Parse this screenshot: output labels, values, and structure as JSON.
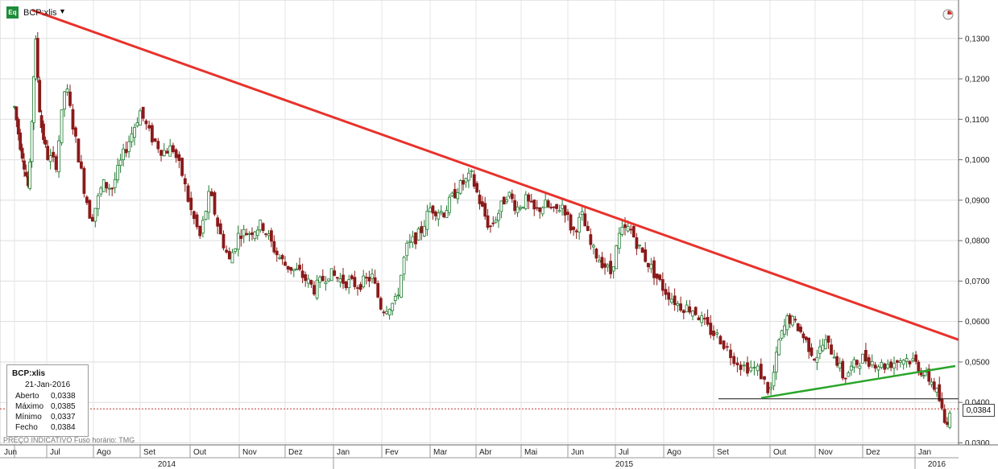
{
  "header": {
    "instrument": "BCP:xlis",
    "badge": "Eq",
    "dropdown_glyph": "▼"
  },
  "icons": {
    "logo": "equity-badge-icon",
    "clock": "clock-icon"
  },
  "info_panel": {
    "title": "BCP:xlis",
    "date": "21-Jan-2016",
    "rows": [
      {
        "label": "Aberto",
        "value": "0,0338"
      },
      {
        "label": "Máximo",
        "value": "0,0385"
      },
      {
        "label": "Mínimo",
        "value": "0,0337"
      },
      {
        "label": "Fecho",
        "value": "0,0384"
      }
    ]
  },
  "footnote": "PREÇO INDICATIVO   Fuso horário: TMG",
  "last_price_tag": "0,0384",
  "colors": {
    "up": "#1e7a2e",
    "down": "#8b1a1a",
    "trend_down": "#e8312a",
    "trend_up": "#2aa52a",
    "support": "#111111",
    "last_price_line": "#c0392b"
  },
  "chart_data": {
    "type": "candlestick",
    "y_axis": {
      "ticks": [
        0.13,
        0.12,
        0.11,
        0.1,
        0.09,
        0.08,
        0.07,
        0.06,
        0.05,
        0.04,
        0.03
      ],
      "tick_labels": [
        "0,1300",
        "0,1200",
        "0,1100",
        "0,1000",
        "0,0900",
        "0,0800",
        "0,0700",
        "0,0600",
        "0,0500",
        "0,0400",
        "0,0300"
      ],
      "ylim": [
        0.0295,
        0.1395
      ],
      "position": "right"
    },
    "x_axis": {
      "months": [
        "Jun",
        "Jul",
        "Ago",
        "Set",
        "Out",
        "Nov",
        "Dez",
        "Jan",
        "Fev",
        "Mar",
        "Abr",
        "Mai",
        "Jun",
        "Jul",
        "Ago",
        "Set",
        "Out",
        "Nov",
        "Dez",
        "Jan"
      ],
      "years": [
        "2014",
        "2015",
        "2016"
      ]
    },
    "price_path": [
      [
        0,
        0.113
      ],
      [
        0.15,
        0.105
      ],
      [
        0.3,
        0.099
      ],
      [
        0.45,
        0.092
      ],
      [
        0.55,
        0.112
      ],
      [
        0.65,
        0.13
      ],
      [
        0.8,
        0.11
      ],
      [
        1.0,
        0.101
      ],
      [
        1.2,
        0.099
      ],
      [
        1.4,
        0.119
      ],
      [
        1.6,
        0.106
      ],
      [
        1.8,
        0.093
      ],
      [
        1.95,
        0.085
      ],
      [
        2.2,
        0.094
      ],
      [
        2.4,
        0.093
      ],
      [
        2.6,
        0.1
      ],
      [
        2.8,
        0.106
      ],
      [
        3.0,
        0.112
      ],
      [
        3.2,
        0.106
      ],
      [
        3.45,
        0.102
      ],
      [
        3.65,
        0.103
      ],
      [
        3.85,
        0.096
      ],
      [
        4.0,
        0.088
      ],
      [
        4.2,
        0.081
      ],
      [
        4.4,
        0.092
      ],
      [
        4.6,
        0.082
      ],
      [
        4.8,
        0.075
      ],
      [
        5.0,
        0.082
      ],
      [
        5.2,
        0.082
      ],
      [
        5.5,
        0.084
      ],
      [
        5.8,
        0.077
      ],
      [
        6.0,
        0.074
      ],
      [
        6.3,
        0.072
      ],
      [
        6.6,
        0.068
      ],
      [
        6.9,
        0.072
      ],
      [
        7.2,
        0.07
      ],
      [
        7.5,
        0.069
      ],
      [
        7.8,
        0.071
      ],
      [
        8.0,
        0.063
      ],
      [
        8.3,
        0.065
      ],
      [
        8.5,
        0.078
      ],
      [
        8.8,
        0.082
      ],
      [
        9.0,
        0.088
      ],
      [
        9.3,
        0.087
      ],
      [
        9.6,
        0.093
      ],
      [
        9.9,
        0.096
      ],
      [
        10.1,
        0.089
      ],
      [
        10.3,
        0.083
      ],
      [
        10.5,
        0.087
      ],
      [
        10.7,
        0.092
      ],
      [
        10.9,
        0.088
      ],
      [
        11.1,
        0.09
      ],
      [
        11.3,
        0.087
      ],
      [
        11.5,
        0.089
      ],
      [
        11.7,
        0.087
      ],
      [
        11.9,
        0.089
      ],
      [
        12.1,
        0.082
      ],
      [
        12.3,
        0.086
      ],
      [
        12.5,
        0.078
      ],
      [
        12.7,
        0.075
      ],
      [
        12.9,
        0.072
      ],
      [
        13.1,
        0.082
      ],
      [
        13.3,
        0.083
      ],
      [
        13.5,
        0.078
      ],
      [
        13.8,
        0.072
      ],
      [
        14.0,
        0.068
      ],
      [
        14.3,
        0.064
      ],
      [
        14.6,
        0.063
      ],
      [
        14.9,
        0.058
      ],
      [
        15.1,
        0.056
      ],
      [
        15.3,
        0.052
      ],
      [
        15.5,
        0.049
      ],
      [
        15.8,
        0.048
      ],
      [
        16.0,
        0.042
      ],
      [
        16.2,
        0.055
      ],
      [
        16.4,
        0.061
      ],
      [
        16.6,
        0.059
      ],
      [
        16.8,
        0.055
      ],
      [
        17.0,
        0.051
      ],
      [
        17.2,
        0.055
      ],
      [
        17.4,
        0.052
      ],
      [
        17.6,
        0.046
      ],
      [
        17.8,
        0.049
      ],
      [
        18.0,
        0.051
      ],
      [
        18.2,
        0.05
      ],
      [
        18.4,
        0.049
      ],
      [
        18.6,
        0.05
      ],
      [
        18.8,
        0.051
      ],
      [
        19.0,
        0.05
      ],
      [
        19.2,
        0.047
      ],
      [
        19.4,
        0.045
      ],
      [
        19.55,
        0.041
      ],
      [
        19.7,
        0.034
      ],
      [
        19.8,
        0.0384
      ]
    ],
    "trendlines": [
      {
        "kind": "resistance",
        "from": [
          "Jul 2014",
          0.137
        ],
        "to": [
          "Jan 2016",
          0.0555
        ]
      },
      {
        "kind": "rising-support",
        "from": [
          "Set 2015",
          0.0411
        ],
        "to": [
          "Jan 2016",
          0.049
        ]
      },
      {
        "kind": "horizontal-support",
        "value": 0.0409
      }
    ],
    "last_close": 0.0384
  }
}
